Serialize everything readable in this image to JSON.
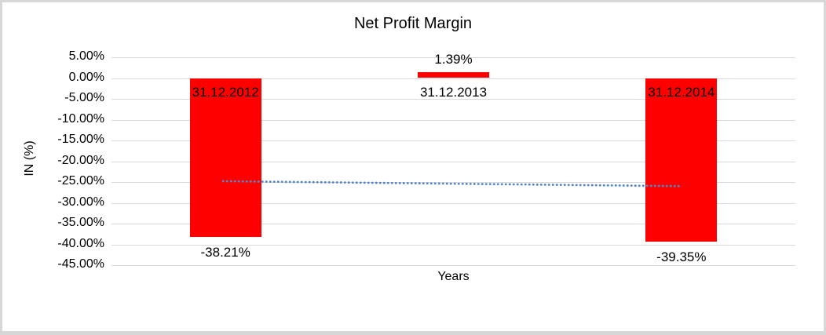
{
  "chart_data": {
    "type": "bar",
    "title": "Net Profit Margin",
    "xlabel": "Years",
    "ylabel": "IN (%)",
    "categories": [
      "31.12.2012",
      "31.12.2013",
      "31.12.2014"
    ],
    "values": [
      -38.21,
      1.39,
      -39.35
    ],
    "data_labels": [
      "-38.21%",
      "1.39%",
      "-39.35%"
    ],
    "ylim": [
      -45,
      5
    ],
    "grid": true,
    "legend": "none",
    "y_ticks": [
      {
        "value": 5,
        "label": "5.00%"
      },
      {
        "value": 0,
        "label": "0.00%"
      },
      {
        "value": -5,
        "label": "-5.00%"
      },
      {
        "value": -10,
        "label": "-10.00%"
      },
      {
        "value": -15,
        "label": "-15.00%"
      },
      {
        "value": -20,
        "label": "-20.00%"
      },
      {
        "value": -25,
        "label": "-25.00%"
      },
      {
        "value": -30,
        "label": "-30.00%"
      },
      {
        "value": -35,
        "label": "-35.00%"
      },
      {
        "value": -40,
        "label": "-40.00%"
      },
      {
        "value": -45,
        "label": "-45.00%"
      }
    ],
    "trendline": {
      "type": "linear",
      "style": "dotted",
      "start_value_pct": -24.8,
      "end_value_pct": -26.0
    },
    "colors": {
      "bar": "#FF0000",
      "trendline": "#5585C8",
      "gridline": "#D9D9D9",
      "text": "#000000",
      "background": "#FFFFFF",
      "border": "#D7D7D7"
    }
  }
}
